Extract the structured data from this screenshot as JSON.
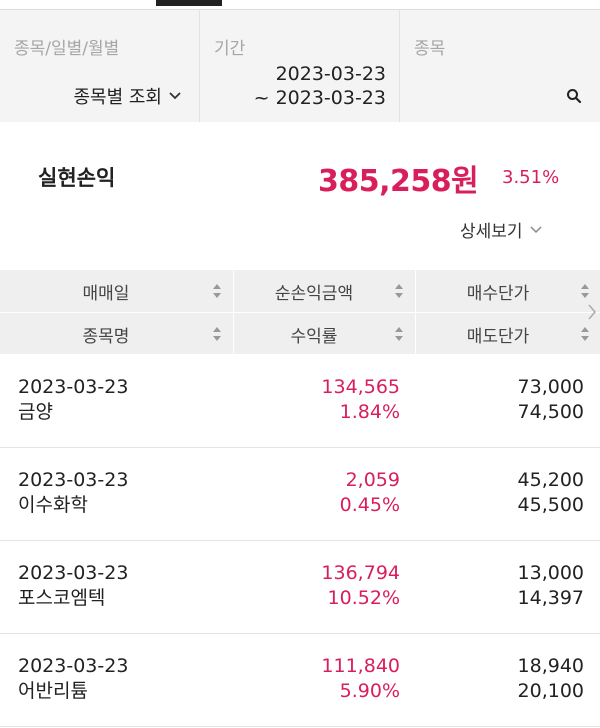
{
  "filters": {
    "period_type": {
      "label": "종목/일별/월별",
      "value": "종목별 조회"
    },
    "date_range": {
      "label": "기간",
      "start": "2023-03-23",
      "end": "~ 2023-03-23"
    },
    "stock": {
      "label": "종목"
    }
  },
  "summary": {
    "title": "실현손익",
    "amount": "385,258원",
    "rate": "3.51%",
    "detail_label": "상세보기"
  },
  "table": {
    "headers_row1": [
      "매매일",
      "순손익금액",
      "매수단가"
    ],
    "headers_row2": [
      "종목명",
      "수익률",
      "매도단가"
    ],
    "rows": [
      {
        "date": "2023-03-23",
        "name": "금양",
        "profit": "134,565",
        "rate": "1.84%",
        "buy_price": "73,000",
        "sell_price": "74,500"
      },
      {
        "date": "2023-03-23",
        "name": "이수화학",
        "profit": "2,059",
        "rate": "0.45%",
        "buy_price": "45,200",
        "sell_price": "45,500"
      },
      {
        "date": "2023-03-23",
        "name": "포스코엠텍",
        "profit": "136,794",
        "rate": "10.52%",
        "buy_price": "13,000",
        "sell_price": "14,397"
      },
      {
        "date": "2023-03-23",
        "name": "어반리튬",
        "profit": "111,840",
        "rate": "5.90%",
        "buy_price": "18,940",
        "sell_price": "20,100"
      }
    ]
  },
  "colors": {
    "accent_red": "#d81f5b",
    "header_bg": "#efefef",
    "filter_bg": "#f4f4f4"
  }
}
